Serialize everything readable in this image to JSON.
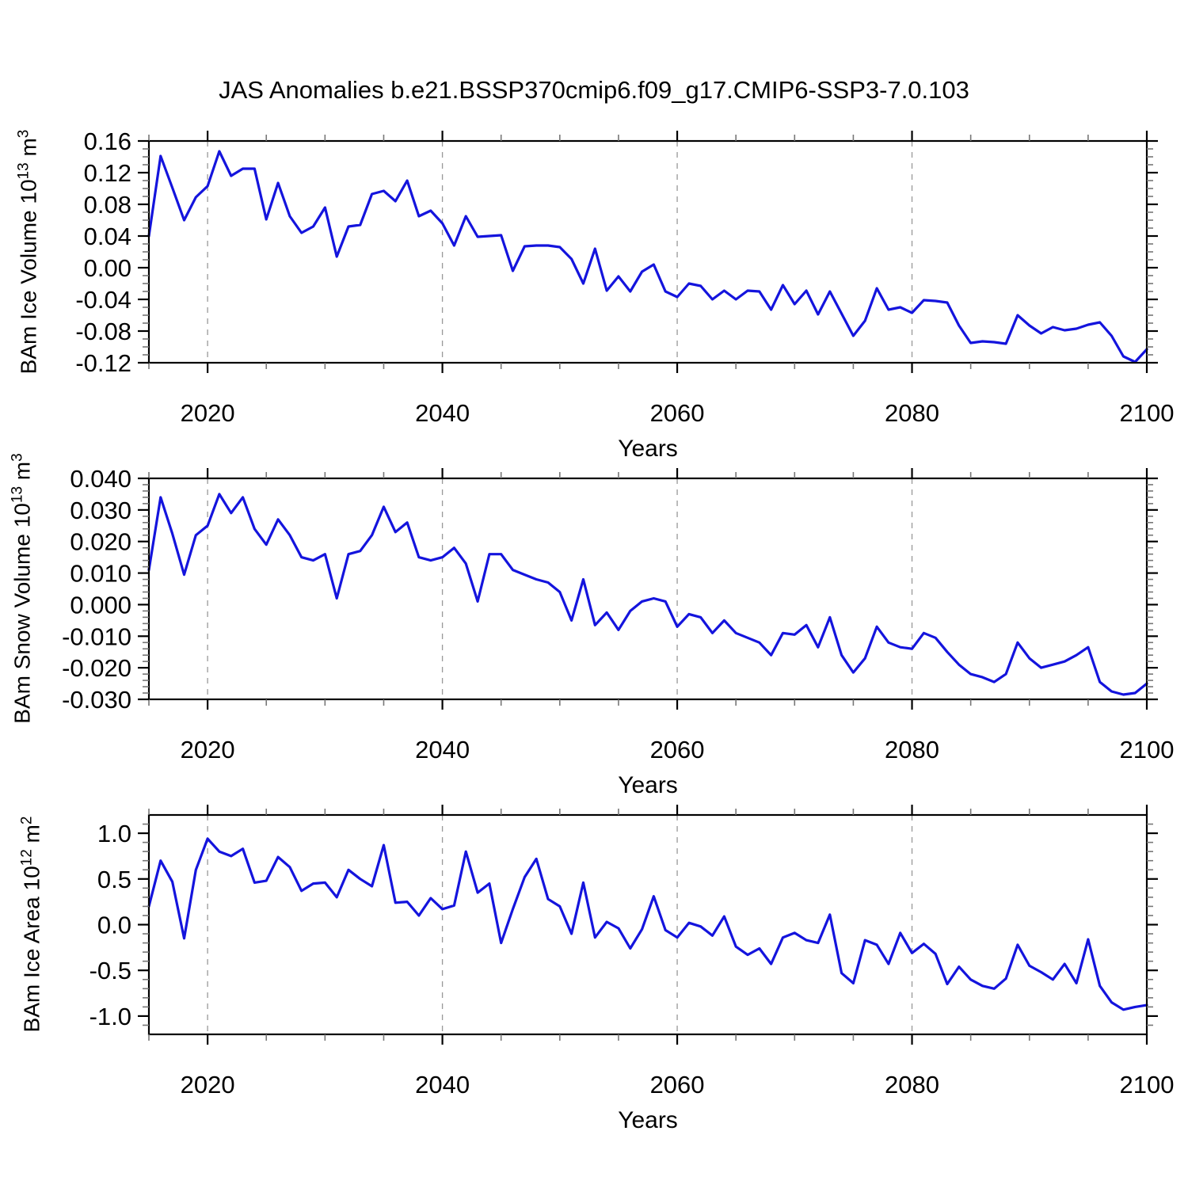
{
  "title": "JAS Anomalies b.e21.BSSP370cmip6.f09_g17.CMIP6-SSP3-7.0.103",
  "line_color": "#1414dd",
  "grid_color": "#999999",
  "minor_tick_color": "#777777",
  "x_axis": {
    "label": "Years",
    "min": 2015,
    "max": 2100,
    "major_ticks": [
      2020,
      2040,
      2060,
      2080,
      2100
    ],
    "major_tick_labels": [
      "2020",
      "2040",
      "2060",
      "2080",
      "2100"
    ],
    "minor_step": 5,
    "gridline_years": [
      2020,
      2040,
      2060,
      2080
    ]
  },
  "years": [
    2015,
    2016,
    2017,
    2018,
    2019,
    2020,
    2021,
    2022,
    2023,
    2024,
    2025,
    2026,
    2027,
    2028,
    2029,
    2030,
    2031,
    2032,
    2033,
    2034,
    2035,
    2036,
    2037,
    2038,
    2039,
    2040,
    2041,
    2042,
    2043,
    2044,
    2045,
    2046,
    2047,
    2048,
    2049,
    2050,
    2051,
    2052,
    2053,
    2054,
    2055,
    2056,
    2057,
    2058,
    2059,
    2060,
    2061,
    2062,
    2063,
    2064,
    2065,
    2066,
    2067,
    2068,
    2069,
    2070,
    2071,
    2072,
    2073,
    2074,
    2075,
    2076,
    2077,
    2078,
    2079,
    2080,
    2081,
    2082,
    2083,
    2084,
    2085,
    2086,
    2087,
    2088,
    2089,
    2090,
    2091,
    2092,
    2093,
    2094,
    2095,
    2096,
    2097,
    2098,
    2099,
    2100
  ],
  "chart_data": [
    {
      "type": "line",
      "name": "ice-volume",
      "ylabel": {
        "prefix": "BAm Ice Volume 10",
        "exponent": "13",
        "unit": " m",
        "unit_exponent": "3"
      },
      "ylim": [
        -0.12,
        0.16
      ],
      "yticks": [
        0.16,
        0.12,
        0.08,
        0.04,
        0.0,
        -0.04,
        -0.08,
        -0.12
      ],
      "ytick_labels": [
        "0.16",
        "0.12",
        "0.08",
        "0.04",
        "0.00",
        "-0.04",
        "-0.08",
        "-0.12"
      ],
      "y_minor_step": 0.01,
      "values": [
        0.04,
        0.141,
        0.101,
        0.06,
        0.089,
        0.103,
        0.147,
        0.116,
        0.125,
        0.125,
        0.061,
        0.107,
        0.065,
        0.044,
        0.052,
        0.076,
        0.014,
        0.052,
        0.054,
        0.093,
        0.097,
        0.084,
        0.11,
        0.065,
        0.072,
        0.056,
        0.028,
        0.065,
        0.039,
        0.04,
        0.041,
        -0.004,
        0.027,
        0.028,
        0.028,
        0.026,
        0.011,
        -0.02,
        0.024,
        -0.029,
        -0.011,
        -0.03,
        -0.005,
        0.004,
        -0.03,
        -0.037,
        -0.02,
        -0.023,
        -0.04,
        -0.029,
        -0.04,
        -0.029,
        -0.03,
        -0.053,
        -0.022,
        -0.046,
        -0.029,
        -0.059,
        -0.03,
        -0.058,
        -0.086,
        -0.067,
        -0.026,
        -0.053,
        -0.05,
        -0.057,
        -0.041,
        -0.042,
        -0.044,
        -0.073,
        -0.095,
        -0.093,
        -0.094,
        -0.096,
        -0.06,
        -0.073,
        -0.083,
        -0.075,
        -0.079,
        -0.077,
        -0.072,
        -0.069,
        -0.086,
        -0.112,
        -0.119,
        -0.103
      ]
    },
    {
      "type": "line",
      "name": "snow-volume",
      "ylabel": {
        "prefix": "BAm Snow Volume 10",
        "exponent": "13",
        "unit": " m",
        "unit_exponent": "3"
      },
      "ylim": [
        -0.03,
        0.04
      ],
      "yticks": [
        0.04,
        0.03,
        0.02,
        0.01,
        0.0,
        -0.01,
        -0.02,
        -0.03
      ],
      "ytick_labels": [
        "0.040",
        "0.030",
        "0.020",
        "0.010",
        "0.000",
        "-0.010",
        "-0.020",
        "-0.030"
      ],
      "y_minor_step": 0.002,
      "values": [
        0.011,
        0.034,
        0.0225,
        0.0095,
        0.022,
        0.025,
        0.035,
        0.029,
        0.034,
        0.024,
        0.019,
        0.027,
        0.022,
        0.015,
        0.014,
        0.016,
        0.002,
        0.016,
        0.017,
        0.022,
        0.031,
        0.023,
        0.026,
        0.015,
        0.014,
        0.015,
        0.018,
        0.013,
        0.001,
        0.016,
        0.016,
        0.011,
        0.0095,
        0.008,
        0.007,
        0.004,
        -0.005,
        0.008,
        -0.0065,
        -0.0025,
        -0.008,
        -0.002,
        0.001,
        0.002,
        0.001,
        -0.007,
        -0.003,
        -0.004,
        -0.009,
        -0.005,
        -0.009,
        -0.0105,
        -0.012,
        -0.016,
        -0.009,
        -0.0095,
        -0.0065,
        -0.0135,
        -0.004,
        -0.016,
        -0.0215,
        -0.017,
        -0.007,
        -0.012,
        -0.0135,
        -0.014,
        -0.009,
        -0.0105,
        -0.015,
        -0.019,
        -0.022,
        -0.023,
        -0.0245,
        -0.022,
        -0.012,
        -0.017,
        -0.02,
        -0.019,
        -0.018,
        -0.016,
        -0.0135,
        -0.0245,
        -0.0275,
        -0.0285,
        -0.028,
        -0.025
      ]
    },
    {
      "type": "line",
      "name": "ice-area",
      "ylabel": {
        "prefix": "BAm Ice Area 10",
        "exponent": "12",
        "unit": " m",
        "unit_exponent": "2"
      },
      "ylim": [
        -1.2,
        1.2
      ],
      "yticks": [
        1.0,
        0.5,
        0.0,
        -0.5,
        -1.0
      ],
      "ytick_labels": [
        "1.0",
        "0.5",
        "0.0",
        "-0.5",
        "-1.0"
      ],
      "y_minor_step": 0.1,
      "values": [
        0.2,
        0.7,
        0.47,
        -0.15,
        0.6,
        0.94,
        0.8,
        0.75,
        0.83,
        0.46,
        0.48,
        0.74,
        0.63,
        0.37,
        0.45,
        0.46,
        0.3,
        0.6,
        0.5,
        0.42,
        0.87,
        0.24,
        0.25,
        0.1,
        0.29,
        0.17,
        0.21,
        0.8,
        0.35,
        0.45,
        -0.2,
        0.17,
        0.52,
        0.72,
        0.28,
        0.2,
        -0.1,
        0.46,
        -0.14,
        0.03,
        -0.04,
        -0.26,
        -0.05,
        0.31,
        -0.06,
        -0.14,
        0.02,
        -0.02,
        -0.12,
        0.09,
        -0.24,
        -0.33,
        -0.26,
        -0.43,
        -0.14,
        -0.09,
        -0.17,
        -0.2,
        0.11,
        -0.53,
        -0.64,
        -0.17,
        -0.22,
        -0.43,
        -0.09,
        -0.31,
        -0.21,
        -0.32,
        -0.65,
        -0.46,
        -0.6,
        -0.67,
        -0.7,
        -0.59,
        -0.22,
        -0.45,
        -0.52,
        -0.6,
        -0.43,
        -0.64,
        -0.16,
        -0.67,
        -0.85,
        -0.93,
        -0.9,
        -0.88
      ]
    }
  ]
}
